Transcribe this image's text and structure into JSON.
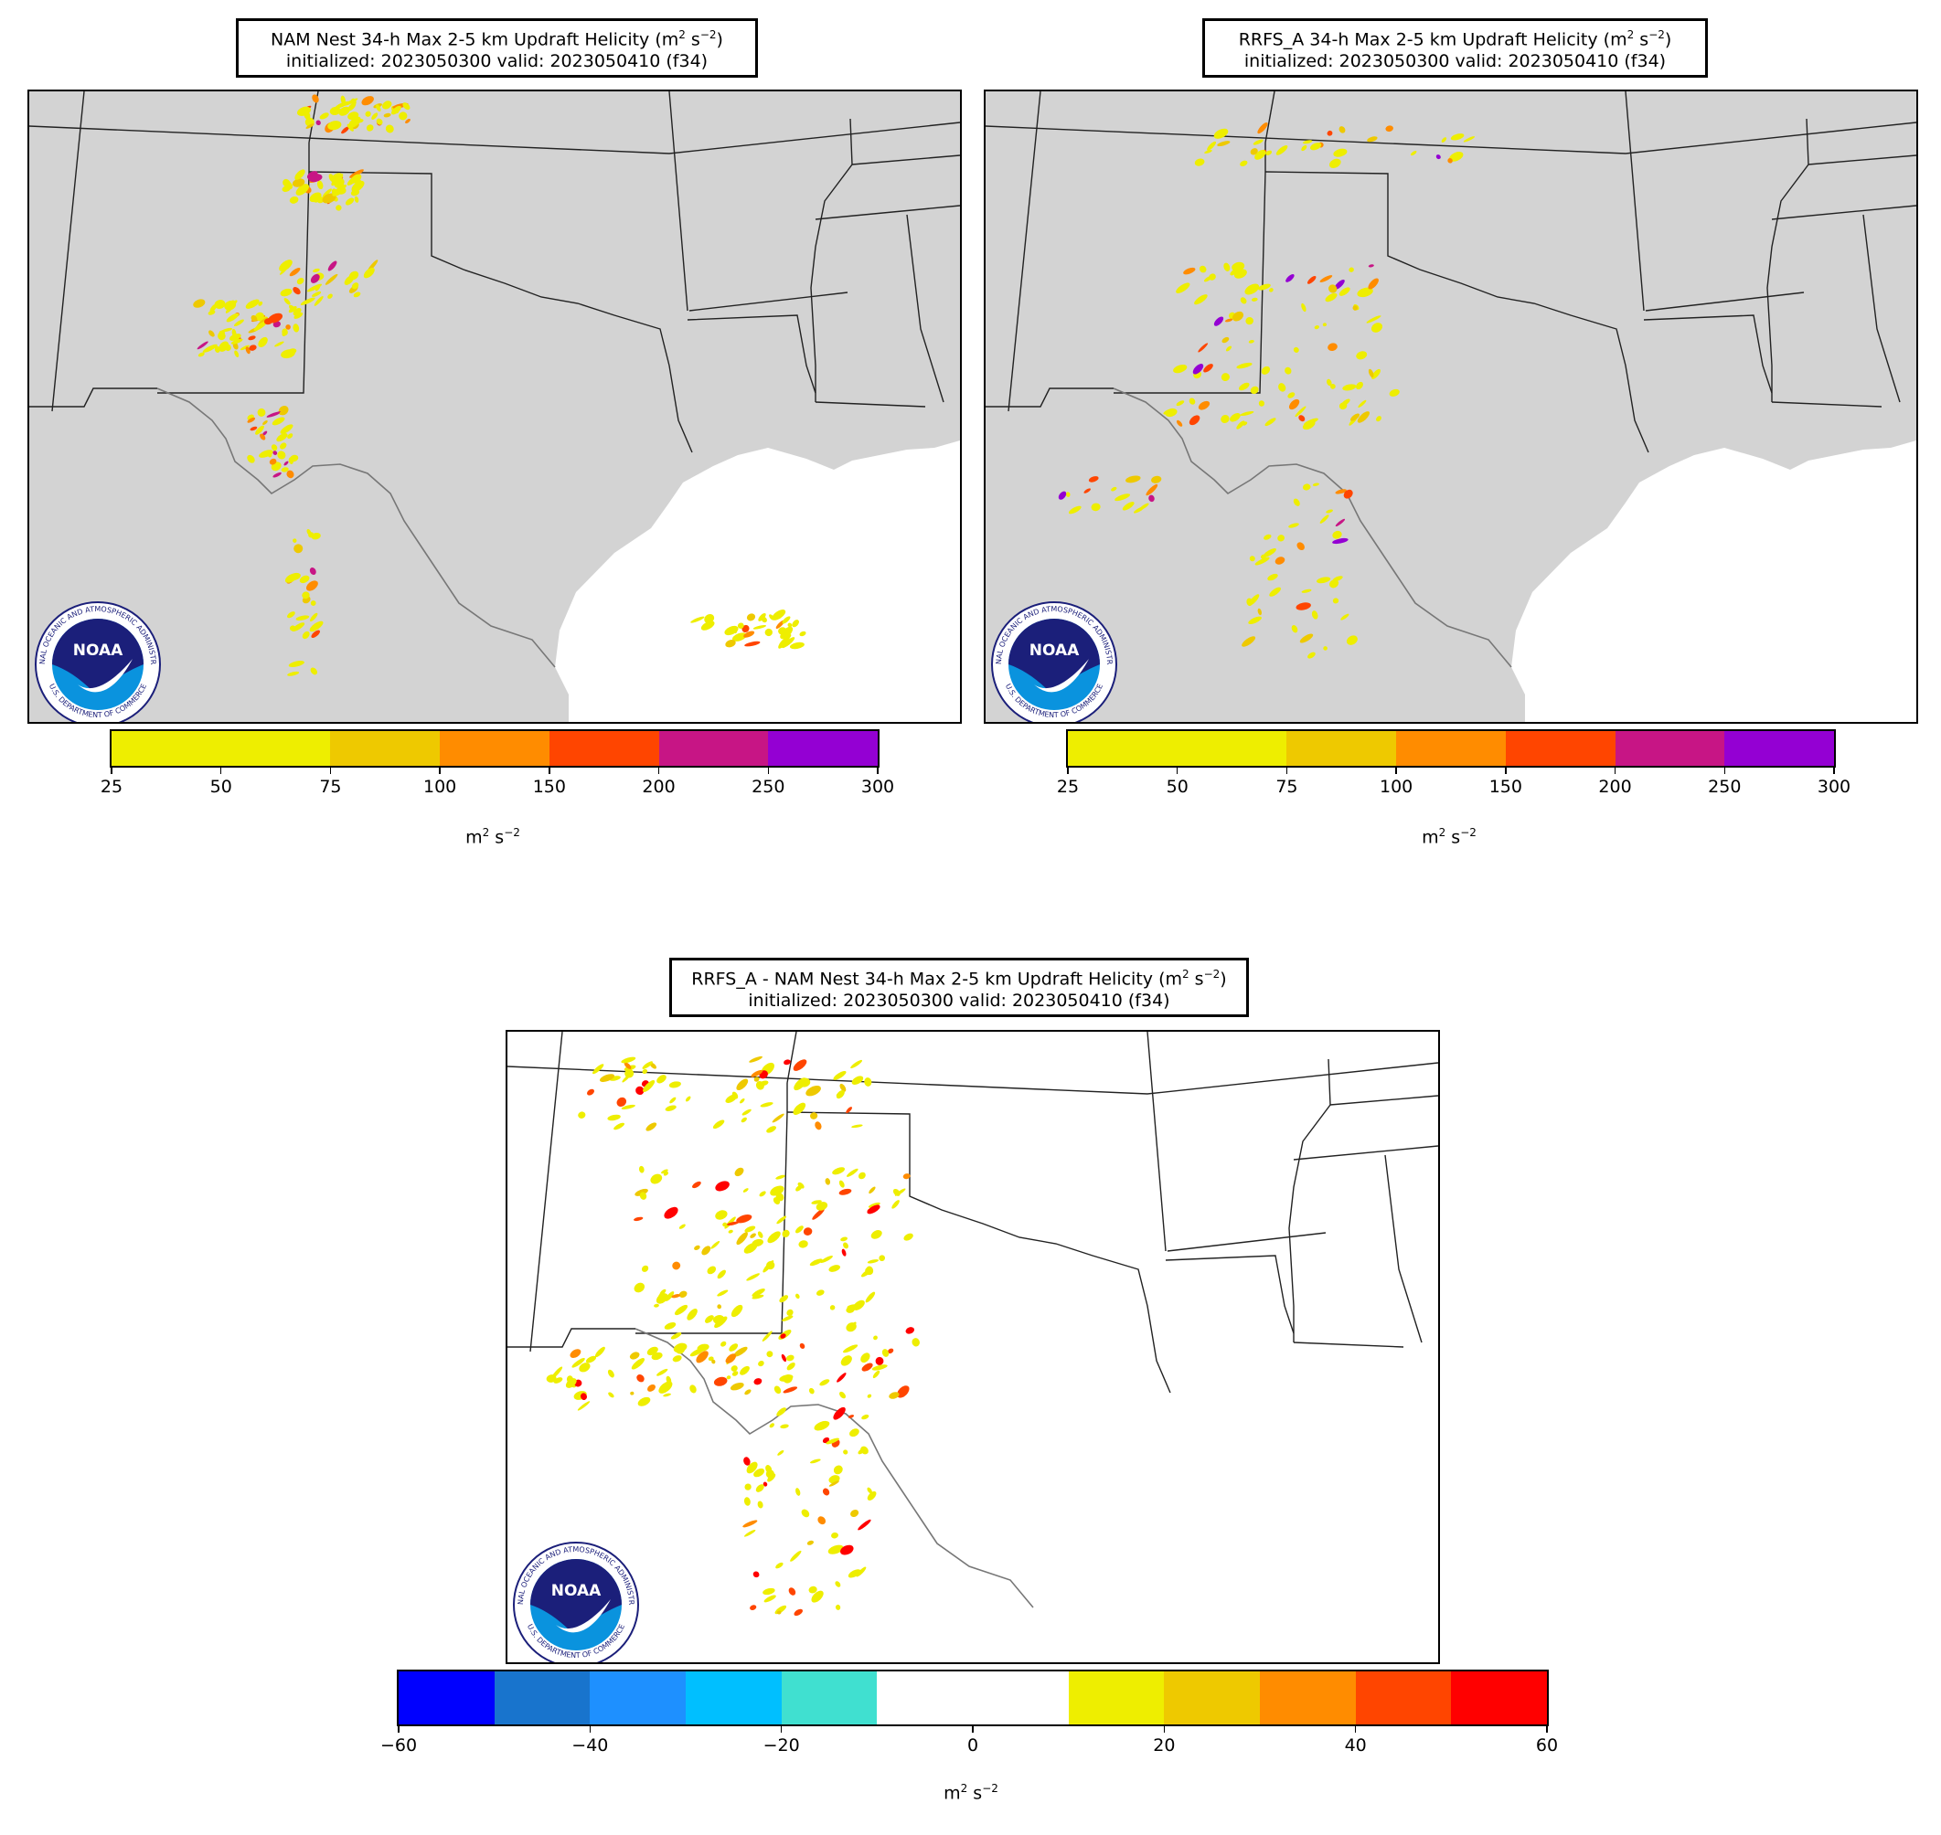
{
  "panels": [
    {
      "id": "nam",
      "title_line1": "NAM Nest 34-h Max 2-5 km Updraft Helicity (m",
      "title_sup": "2",
      "title_mid": " s",
      "title_sup2": "−2",
      "title_end": ")",
      "title_line2": "initialized: 2023050300 valid: 2023050410 (f34)",
      "land_color": "#d3d3d3",
      "colorbar": {
        "colors": [
          "#eeee00",
          "#eeee00",
          "#eec900",
          "#ff8c00",
          "#ff4500",
          "#c71585",
          "#9400d3"
        ],
        "bins": [
          25,
          75,
          100,
          150,
          200,
          250,
          300
        ],
        "tick_labels": [
          "25",
          "50",
          "75",
          "100",
          "150",
          "200",
          "250",
          "300"
        ],
        "unit": "m",
        "unit_sup": "2",
        "unit_mid": " s",
        "unit_sup2": "−2"
      }
    },
    {
      "id": "rrfs",
      "title_line1": "RRFS_A 34-h Max 2-5 km Updraft Helicity (m",
      "title_sup": "2",
      "title_mid": " s",
      "title_sup2": "−2",
      "title_end": ")",
      "title_line2": "initialized: 2023050300 valid: 2023050410 (f34)",
      "land_color": "#d3d3d3",
      "colorbar": {
        "colors": [
          "#eeee00",
          "#eeee00",
          "#eec900",
          "#ff8c00",
          "#ff4500",
          "#c71585",
          "#9400d3"
        ],
        "tick_labels": [
          "25",
          "50",
          "75",
          "100",
          "150",
          "200",
          "250",
          "300"
        ],
        "unit": "m",
        "unit_sup": "2",
        "unit_mid": " s",
        "unit_sup2": "−2"
      }
    },
    {
      "id": "diff",
      "title_line1": "RRFS_A - NAM Nest 34-h Max 2-5 km Updraft Helicity (m",
      "title_sup": "2",
      "title_mid": " s",
      "title_sup2": "−2",
      "title_end": ")",
      "title_line2": "initialized: 2023050300 valid: 2023050410 (f34)",
      "land_color": "#ffffff",
      "colorbar": {
        "colors": [
          "#0000ff",
          "#1874cd",
          "#1e90ff",
          "#00bfff",
          "#40e0d0",
          "#ffffff",
          "#ffffff",
          "#eeee00",
          "#eec900",
          "#ff8c00",
          "#ff4500",
          "#ff0000"
        ],
        "tick_labels": [
          "−60",
          "−40",
          "−20",
          "0",
          "20",
          "40",
          "60"
        ],
        "unit": "m",
        "unit_sup": "2",
        "unit_mid": " s",
        "unit_sup2": "−2"
      }
    }
  ],
  "logo": {
    "text": "NOAA",
    "ring_text_top": "NATIONAL OCEANIC AND ATMOSPHERIC ADMINISTRATION",
    "ring_text_bottom": "U.S. DEPARTMENT OF COMMERCE",
    "navy": "#1b1f7a",
    "blue": "#0a93de"
  }
}
